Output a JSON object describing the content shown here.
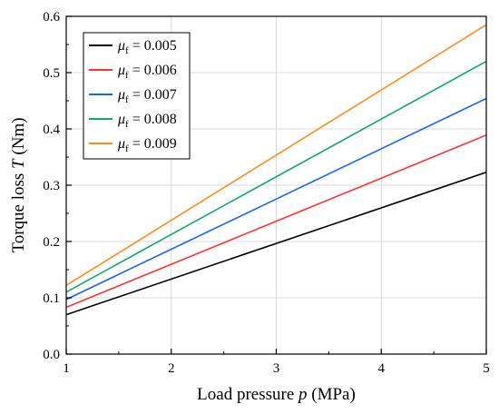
{
  "chart_data": {
    "type": "line",
    "xlabel": {
      "prefix": "Load pressure ",
      "var": "p",
      "suffix": " (MPa)"
    },
    "ylabel": {
      "prefix": "Torque loss ",
      "var": "T",
      "suffix": " (Nm)"
    },
    "xlim": [
      1,
      5
    ],
    "ylim": [
      0,
      0.6
    ],
    "x_ticks": [
      "1",
      "2",
      "3",
      "4",
      "5"
    ],
    "y_ticks": [
      "0.0",
      "0.1",
      "0.2",
      "0.3",
      "0.4",
      "0.5",
      "0.6"
    ],
    "grid": true,
    "legend_position": "top-left",
    "x": [
      1,
      5
    ],
    "series": [
      {
        "name": "μf = 0.005",
        "symbol": "μ",
        "sub": "f",
        "value_text": " = 0.005",
        "color": "#000000",
        "values": [
          0.07,
          0.323
        ]
      },
      {
        "name": "μf = 0.006",
        "symbol": "μ",
        "sub": "f",
        "value_text": " = 0.006",
        "color": "#ff3333",
        "values": [
          0.083,
          0.389
        ]
      },
      {
        "name": "μf = 0.007",
        "symbol": "μ",
        "sub": "f",
        "value_text": " = 0.007",
        "color": "#1565ff",
        "values": [
          0.097,
          0.454
        ]
      },
      {
        "name": "μf = 0.008",
        "symbol": "μ",
        "sub": "f",
        "value_text": " = 0.008",
        "color": "#12a86a",
        "values": [
          0.11,
          0.52
        ]
      },
      {
        "name": "μf = 0.009",
        "symbol": "μ",
        "sub": "f",
        "value_text": " = 0.009",
        "color": "#ff8c1a",
        "values": [
          0.122,
          0.585
        ]
      }
    ]
  }
}
